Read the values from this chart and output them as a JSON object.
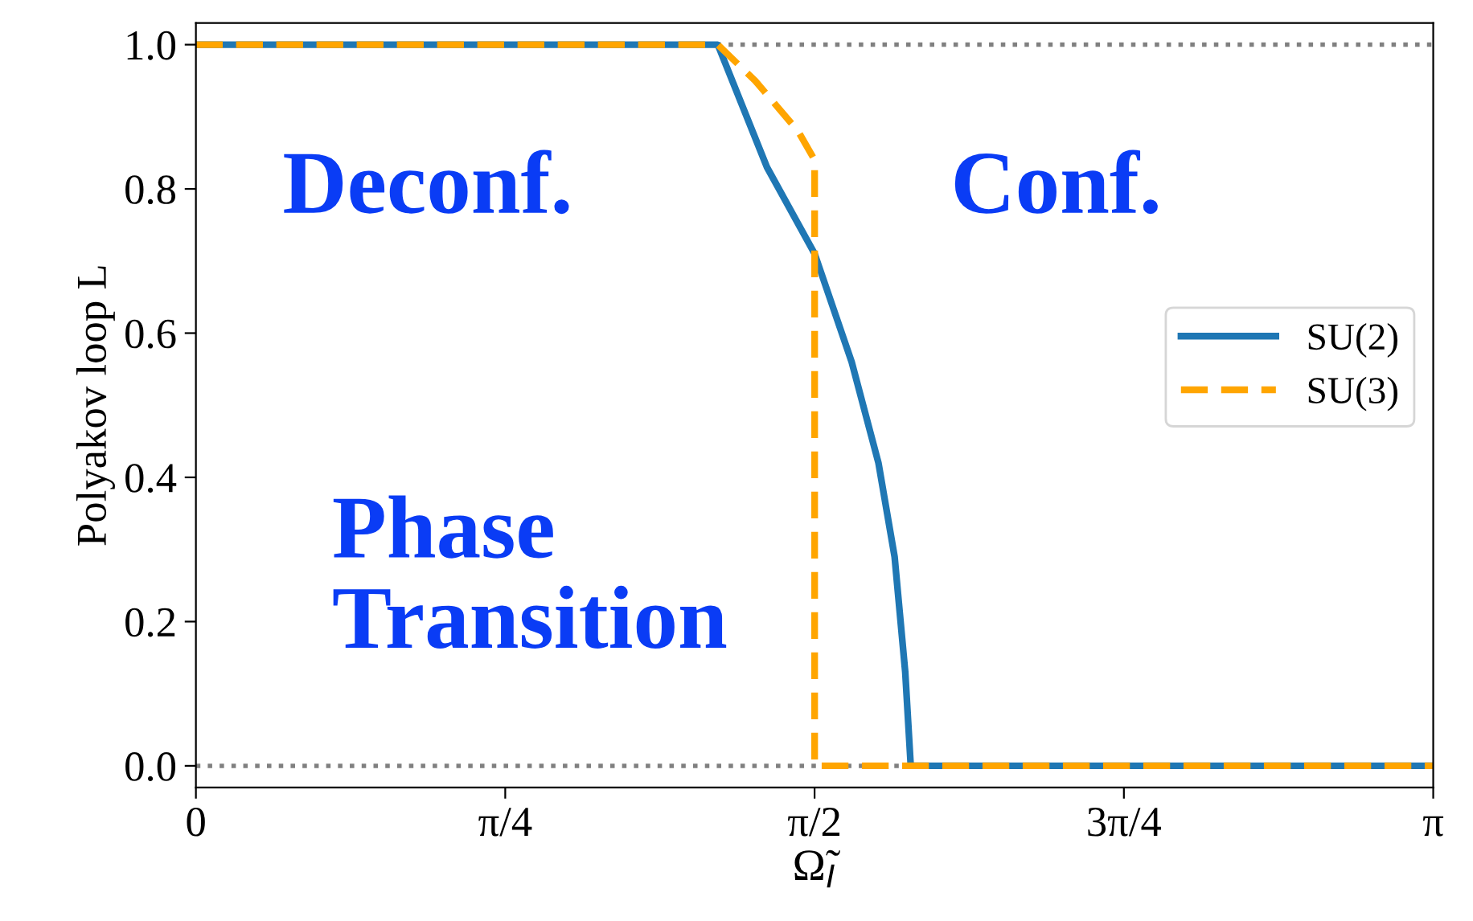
{
  "chart_data": {
    "type": "line",
    "xlabel": "Ω̃$_{I}$",
    "ylabel": "Polyakov loop L",
    "xlim": [
      0,
      3.1416
    ],
    "ylim": [
      -0.03,
      1.03
    ],
    "xticks": [
      {
        "value": 0,
        "label": "0"
      },
      {
        "value": 0.7854,
        "label": "π/4"
      },
      {
        "value": 1.5708,
        "label": "π/2"
      },
      {
        "value": 2.3562,
        "label": "3π/4"
      },
      {
        "value": 3.1416,
        "label": "π"
      }
    ],
    "yticks": [
      {
        "value": 0,
        "label": "0.0"
      },
      {
        "value": 0.2,
        "label": "0.2"
      },
      {
        "value": 0.4,
        "label": "0.4"
      },
      {
        "value": 0.6,
        "label": "0.6"
      },
      {
        "value": 0.8,
        "label": "0.8"
      },
      {
        "value": 1,
        "label": "1.0"
      }
    ],
    "series": [
      {
        "name": "SU(2)",
        "color": "#1f77b4",
        "line_style": "solid",
        "x": [
          0,
          1.325,
          1.45,
          1.571,
          1.665,
          1.733,
          1.774,
          1.801,
          1.815,
          3.1416
        ],
        "values": [
          1,
          1,
          0.83,
          0.71,
          0.56,
          0.42,
          0.29,
          0.13,
          0,
          0
        ]
      },
      {
        "name": "SU(3)",
        "color": "#ffa500",
        "line_style": "dashed",
        "x": [
          0,
          1.325,
          1.42,
          1.529,
          1.571,
          1.571,
          3.1416
        ],
        "values": [
          1,
          1,
          0.95,
          0.88,
          0.84,
          0,
          0
        ]
      }
    ],
    "ref_lines": [
      {
        "axis": "y",
        "value": 1,
        "color": "#808080",
        "line_style": "dotted"
      },
      {
        "axis": "y",
        "value": 0,
        "color": "#808080",
        "line_style": "dotted"
      }
    ],
    "annotations": [
      "Deconf.",
      "Conf.",
      "Phase\nTransition"
    ],
    "legend": "right",
    "grid": false
  }
}
